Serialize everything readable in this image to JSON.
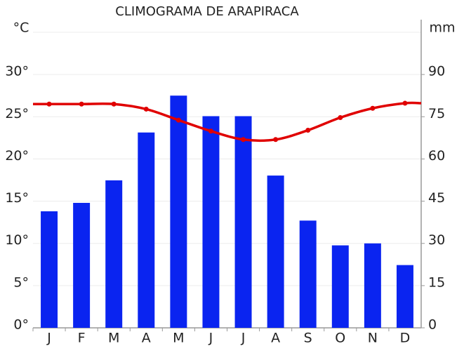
{
  "chart_data": {
    "type": "combo",
    "title": "CLIMOGRAMA DE ARAPIRACA",
    "y_label": "°C",
    "y2_label": "mm",
    "categories": [
      "J",
      "F",
      "M",
      "A",
      "M",
      "J",
      "J",
      "A",
      "S",
      "O",
      "N",
      "D"
    ],
    "series": [
      {
        "type": "bar",
        "axis": "y2",
        "color": "#0a24f0",
        "values": [
          41.4,
          44.4,
          52.4,
          69.4,
          82.5,
          75.2,
          75.2,
          54.1,
          38.1,
          29.3,
          30,
          22.3
        ]
      },
      {
        "type": "line",
        "axis": "y",
        "color": "#e00000",
        "values": [
          26.5,
          26.5,
          26.5,
          25.9,
          24.6,
          23.3,
          22.3,
          22.3,
          23.4,
          24.9,
          26,
          26.6
        ]
      }
    ],
    "ylim": [
      0,
      35
    ],
    "yticks": [
      {
        "value": 0,
        "label": "0°"
      },
      {
        "value": 5,
        "label": "5°"
      },
      {
        "value": 10,
        "label": "10°"
      },
      {
        "value": 15,
        "label": "15°"
      },
      {
        "value": 20,
        "label": "20°"
      },
      {
        "value": 25,
        "label": "25°"
      },
      {
        "value": 30,
        "label": "30°"
      }
    ],
    "y2lim": [
      0,
      105
    ],
    "y2ticks": [
      0,
      15,
      30,
      45,
      60,
      75,
      90
    ],
    "grid": true
  }
}
